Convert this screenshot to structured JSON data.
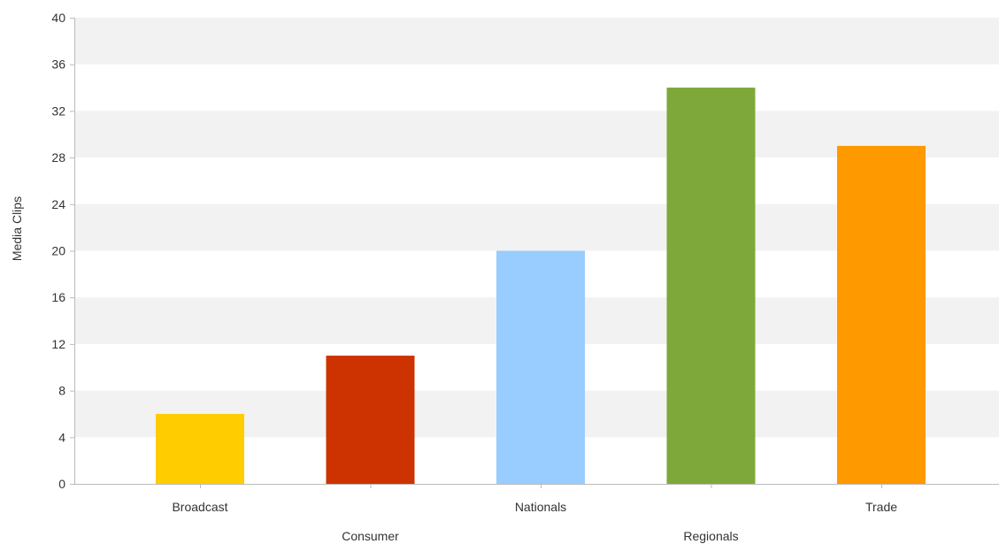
{
  "chart_data": {
    "type": "bar",
    "title": "",
    "xlabel": "",
    "ylabel": "Media Clips",
    "categories": [
      "Broadcast",
      "Consumer",
      "Nationals",
      "Regionals",
      "Trade"
    ],
    "values": [
      6,
      11,
      20,
      34,
      29
    ],
    "colors": [
      "#FFCC00",
      "#CC3300",
      "#99CCFF",
      "#7FA83A",
      "#FF9900"
    ],
    "ylim": [
      0,
      40
    ],
    "yticks": [
      0,
      4,
      8,
      12,
      16,
      20,
      24,
      28,
      32,
      36,
      40
    ],
    "grid": "alternating horizontal bands",
    "band_color": "#F2F2F2",
    "axis_color": "#BBBBBB",
    "legend": "none"
  }
}
